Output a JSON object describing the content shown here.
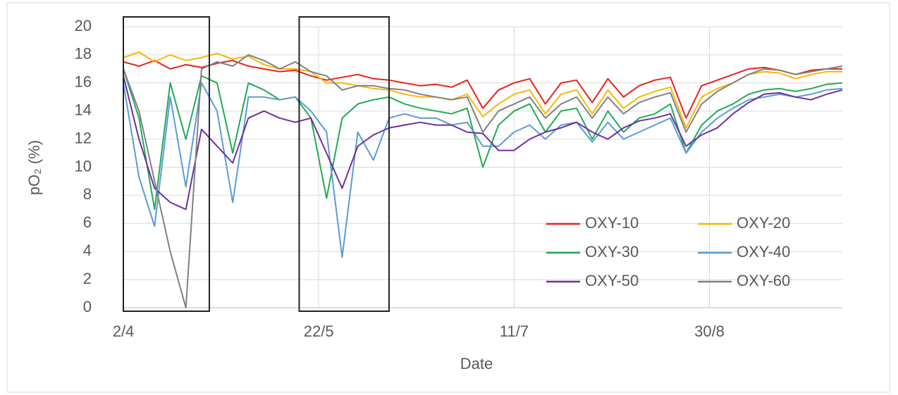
{
  "chart_data": {
    "type": "line",
    "x_label": "Date",
    "y_label": "pO₂ (%)",
    "x": [
      "2/4",
      "6/4",
      "10/4",
      "14/4",
      "18/4",
      "22/4",
      "26/4",
      "30/4",
      "4/5",
      "8/5",
      "12/5",
      "16/5",
      "20/5",
      "24/5",
      "28/5",
      "1/6",
      "5/6",
      "9/6",
      "13/6",
      "17/6",
      "21/6",
      "25/6",
      "29/6",
      "3/7",
      "7/7",
      "11/7",
      "15/7",
      "19/7",
      "23/7",
      "27/7",
      "31/7",
      "4/8",
      "8/8",
      "12/8",
      "16/8",
      "20/8",
      "24/8",
      "28/8",
      "1/9",
      "5/9",
      "9/9",
      "13/9",
      "17/9",
      "21/9",
      "25/9",
      "29/9",
      "3/10"
    ],
    "xlim": [
      "2/4",
      "3/10"
    ],
    "xticks": [
      "2/4",
      "22/5",
      "11/7",
      "30/8"
    ],
    "ylim": [
      0,
      20
    ],
    "yticks": [
      0,
      2,
      4,
      6,
      8,
      10,
      12,
      14,
      16,
      18,
      20
    ],
    "grid": true,
    "legend": "lower right",
    "highlight_ranges": [
      [
        "2/4",
        "24/4"
      ],
      [
        "17/5",
        "9/6"
      ]
    ],
    "series": [
      {
        "name": "OXY-10",
        "color": "#e8231f",
        "values": [
          17.5,
          17.2,
          17.6,
          17.0,
          17.3,
          17.1,
          17.4,
          17.6,
          17.2,
          17.0,
          16.8,
          16.9,
          16.5,
          16.2,
          16.4,
          16.6,
          16.3,
          16.2,
          16.0,
          15.8,
          15.9,
          15.7,
          16.2,
          14.2,
          15.5,
          16.0,
          16.3,
          14.5,
          16.0,
          16.2,
          14.6,
          16.3,
          15.0,
          15.8,
          16.2,
          16.4,
          13.5,
          15.8,
          16.2,
          16.6,
          17.0,
          17.1,
          16.9,
          16.6,
          16.9,
          17.0,
          17.0
        ]
      },
      {
        "name": "OXY-20",
        "color": "#f5b800",
        "values": [
          17.8,
          18.2,
          17.5,
          18.0,
          17.6,
          17.8,
          18.1,
          17.7,
          17.9,
          17.3,
          17.0,
          17.0,
          16.8,
          16.0,
          16.0,
          15.8,
          15.6,
          15.5,
          15.2,
          15.0,
          15.0,
          14.8,
          15.2,
          13.6,
          14.5,
          15.2,
          15.5,
          13.8,
          15.2,
          15.5,
          13.8,
          15.5,
          14.2,
          15.0,
          15.4,
          15.7,
          12.8,
          15.0,
          15.6,
          16.0,
          16.6,
          16.8,
          16.7,
          16.3,
          16.6,
          16.8,
          16.8
        ]
      },
      {
        "name": "OXY-30",
        "color": "#22aa55",
        "values": [
          17.0,
          13.5,
          7.0,
          16.0,
          12.0,
          16.5,
          16.0,
          11.0,
          16.0,
          15.5,
          14.8,
          15.0,
          13.5,
          7.8,
          13.5,
          14.5,
          14.8,
          15.0,
          14.5,
          14.2,
          14.0,
          13.8,
          14.2,
          10.0,
          13.0,
          14.0,
          14.5,
          12.5,
          14.0,
          14.2,
          12.0,
          14.0,
          12.5,
          13.5,
          13.8,
          14.5,
          11.0,
          13.0,
          14.0,
          14.5,
          15.2,
          15.5,
          15.6,
          15.4,
          15.6,
          15.9,
          16.0
        ]
      },
      {
        "name": "OXY-40",
        "color": "#5b9bd5",
        "values": [
          16.0,
          9.3,
          5.8,
          15.0,
          8.6,
          16.0,
          14.0,
          7.5,
          15.0,
          15.0,
          14.8,
          15.0,
          14.0,
          12.5,
          3.6,
          12.5,
          10.5,
          13.5,
          13.8,
          13.5,
          13.5,
          13.0,
          13.2,
          11.5,
          11.5,
          12.5,
          13.0,
          12.0,
          13.0,
          13.2,
          11.8,
          13.2,
          12.0,
          12.5,
          13.0,
          13.5,
          11.0,
          12.5,
          13.5,
          14.2,
          14.8,
          15.0,
          15.2,
          15.0,
          15.2,
          15.5,
          15.6
        ]
      },
      {
        "name": "OXY-50",
        "color": "#7030a0",
        "values": [
          16.5,
          12.0,
          8.5,
          7.5,
          7.0,
          12.7,
          11.5,
          10.3,
          13.5,
          14.0,
          13.5,
          13.2,
          13.5,
          11.0,
          8.5,
          11.5,
          12.3,
          12.8,
          13.0,
          13.2,
          13.0,
          13.0,
          12.5,
          12.4,
          11.2,
          11.2,
          12.0,
          12.5,
          12.8,
          13.2,
          12.5,
          12.0,
          12.8,
          13.3,
          13.5,
          13.8,
          11.5,
          12.3,
          12.8,
          13.8,
          14.6,
          15.2,
          15.3,
          15.0,
          14.8,
          15.2,
          15.5
        ]
      },
      {
        "name": "OXY-60",
        "color": "#808080",
        "values": [
          17.0,
          14.0,
          9.0,
          4.0,
          0.0,
          17.0,
          17.5,
          17.2,
          18.0,
          17.6,
          17.0,
          17.5,
          16.8,
          16.5,
          15.5,
          15.8,
          15.8,
          15.6,
          15.5,
          15.2,
          15.0,
          14.8,
          15.0,
          12.5,
          14.0,
          14.5,
          15.0,
          13.5,
          14.5,
          15.0,
          13.5,
          15.0,
          13.8,
          14.6,
          15.0,
          15.3,
          12.5,
          14.5,
          15.4,
          16.0,
          16.6,
          17.0,
          16.9,
          16.6,
          16.8,
          17.0,
          17.2
        ]
      }
    ]
  }
}
